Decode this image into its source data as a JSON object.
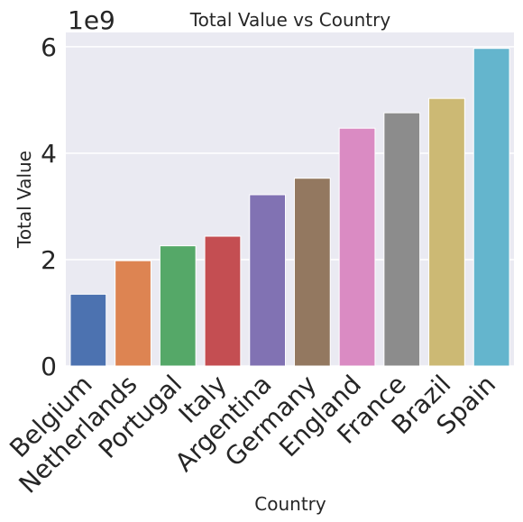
{
  "chart_data": {
    "type": "bar",
    "title": "Total Value vs Country",
    "xlabel": "Country",
    "ylabel": "Total Value",
    "y_offset_text": "1e9",
    "categories": [
      "Belgium",
      "Netherlands",
      "Portugal",
      "Italy",
      "Argentina",
      "Germany",
      "England",
      "France",
      "Brazil",
      "Spain"
    ],
    "values": [
      1.35,
      1.98,
      2.26,
      2.44,
      3.22,
      3.53,
      4.47,
      4.76,
      5.03,
      5.97
    ],
    "value_scale": 1000000000,
    "ylim": [
      0,
      6.27
    ],
    "yticks": [
      0,
      2,
      4,
      6
    ],
    "ytick_labels": [
      "0",
      "2",
      "4",
      "6"
    ],
    "grid": true,
    "background": "#eaeaf2",
    "colors": [
      "#4c72b0",
      "#dd8452",
      "#55a868",
      "#c44e52",
      "#8172b3",
      "#937860",
      "#da8bc3",
      "#8c8c8c",
      "#ccb974",
      "#64b5cd"
    ]
  }
}
